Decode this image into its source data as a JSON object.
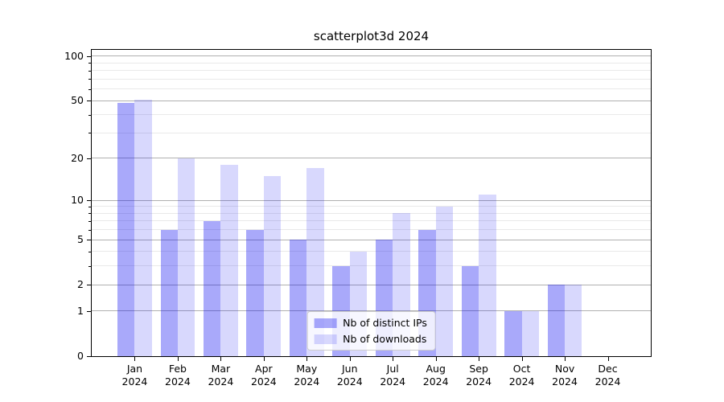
{
  "chart_data": {
    "type": "bar",
    "title": "scatterplot3d 2024",
    "x_tick_labels": [
      [
        "Jan",
        "2024"
      ],
      [
        "Feb",
        "2024"
      ],
      [
        "Mar",
        "2024"
      ],
      [
        "Apr",
        "2024"
      ],
      [
        "May",
        "2024"
      ],
      [
        "Jun",
        "2024"
      ],
      [
        "Jul",
        "2024"
      ],
      [
        "Aug",
        "2024"
      ],
      [
        "Sep",
        "2024"
      ],
      [
        "Oct",
        "2024"
      ],
      [
        "Nov",
        "2024"
      ],
      [
        "Dec",
        "2024"
      ]
    ],
    "series": [
      {
        "name": "Nb of distinct IPs",
        "color": "rgba(10,10,240,0.35)",
        "values": [
          48,
          6,
          7,
          6,
          5,
          3,
          5,
          6,
          3,
          1,
          2,
          0
        ]
      },
      {
        "name": "Nb of downloads",
        "color": "rgba(10,10,240,0.16)",
        "values": [
          51,
          20,
          18,
          15,
          17,
          4,
          8,
          9,
          11,
          1,
          2,
          0
        ]
      }
    ],
    "yscale": "log1p",
    "ylim": [
      0,
      110.4
    ],
    "y_major_ticks": [
      100,
      50,
      20,
      10,
      5,
      2,
      1,
      0
    ],
    "y_tick_labels": [
      "100",
      "50",
      "20",
      "10",
      "5",
      "2",
      "1",
      "0"
    ],
    "y_minor_gridlines": [
      3,
      4,
      6,
      7,
      8,
      9,
      30,
      40,
      60,
      70,
      80,
      90
    ],
    "grid": true,
    "legend_position": "lower center",
    "colors": {
      "major_grid": "#b0b0b0",
      "minor_grid": "#e9e9e9",
      "axis": "#000000",
      "background": "#ffffff",
      "legend_border": "#cccccc",
      "legend_background": "rgba(255,255,255,0.8)"
    }
  },
  "legend": {
    "items": [
      "Nb of distinct IPs",
      "Nb of downloads"
    ]
  }
}
